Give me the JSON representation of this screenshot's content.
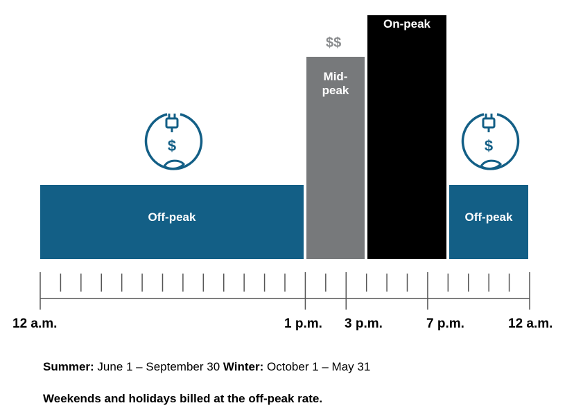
{
  "colors": {
    "off_peak": "#135f86",
    "mid_peak": "#77797b",
    "on_peak": "#000000",
    "price_text": "#8a8c8e"
  },
  "periods": [
    {
      "label": "Off-peak",
      "kind": "off_peak",
      "start_hour": 0,
      "end_hour": 13
    },
    {
      "label": "Mid-\npeak",
      "kind": "mid_peak",
      "start_hour": 13,
      "end_hour": 15
    },
    {
      "label": "On-peak",
      "kind": "on_peak",
      "start_hour": 15,
      "end_hour": 19
    },
    {
      "label": "Off-peak",
      "kind": "off_peak",
      "start_hour": 19,
      "end_hour": 24
    }
  ],
  "mid_price": "$$",
  "icon": {
    "name": "plug-leaf-dollar-icon",
    "symbol": "$"
  },
  "time_labels": [
    "12 a.m.",
    "1 p.m.",
    "3 p.m.",
    "7 p.m.",
    "12 a.m."
  ],
  "notes": {
    "summer_label": "Summer:",
    "summer_value": " June 1 – September 30 ",
    "winter_label": "Winter:",
    "winter_value": " October 1 – May 31",
    "weekends": "Weekends and holidays billed at the off-peak rate."
  }
}
